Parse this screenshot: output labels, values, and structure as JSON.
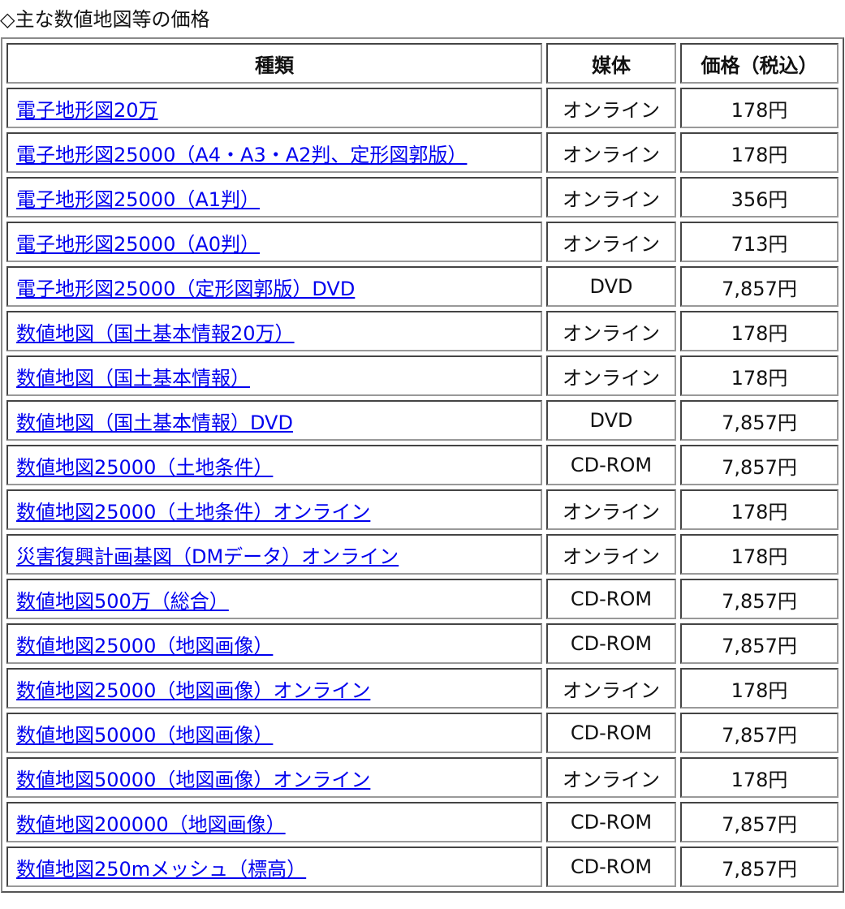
{
  "title": "◇主な数値地図等の価格",
  "headers": {
    "type": "種類",
    "media": "媒体",
    "price": "価格（税込）"
  },
  "rows": [
    {
      "name": "電子地形図20万",
      "media": "オンライン",
      "price": "178円"
    },
    {
      "name": "電子地形図25000（A4・A3・A2判、定形図郭版）",
      "media": "オンライン",
      "price": "178円"
    },
    {
      "name": "電子地形図25000（A1判）",
      "media": "オンライン",
      "price": "356円"
    },
    {
      "name": "電子地形図25000（A0判）",
      "media": "オンライン",
      "price": "713円"
    },
    {
      "name": "電子地形図25000（定形図郭版）DVD",
      "media": "DVD",
      "price": "7,857円"
    },
    {
      "name": "数値地図（国土基本情報20万）",
      "media": "オンライン",
      "price": "178円"
    },
    {
      "name": "数値地図（国土基本情報）",
      "media": "オンライン",
      "price": "178円"
    },
    {
      "name": "数値地図（国土基本情報）DVD",
      "media": "DVD",
      "price": "7,857円"
    },
    {
      "name": "数値地図25000（土地条件）",
      "media": "CD-ROM",
      "price": "7,857円"
    },
    {
      "name": "数値地図25000（土地条件）オンライン",
      "media": "オンライン",
      "price": "178円"
    },
    {
      "name": "災害復興計画基図（DMデータ）オンライン",
      "media": "オンライン",
      "price": "178円"
    },
    {
      "name": "数値地図500万（総合）",
      "media": "CD-ROM",
      "price": "7,857円"
    },
    {
      "name": "数値地図25000（地図画像）",
      "media": "CD-ROM",
      "price": "7,857円"
    },
    {
      "name": "数値地図25000（地図画像）オンライン",
      "media": "オンライン",
      "price": "178円"
    },
    {
      "name": "数値地図50000（地図画像）",
      "media": "CD-ROM",
      "price": "7,857円"
    },
    {
      "name": "数値地図50000（地図画像）オンライン",
      "media": "オンライン",
      "price": "178円"
    },
    {
      "name": "数値地図200000（地図画像）",
      "media": "CD-ROM",
      "price": "7,857円"
    },
    {
      "name": "数値地図250mメッシュ（標高）",
      "media": "CD-ROM",
      "price": "7,857円"
    }
  ]
}
